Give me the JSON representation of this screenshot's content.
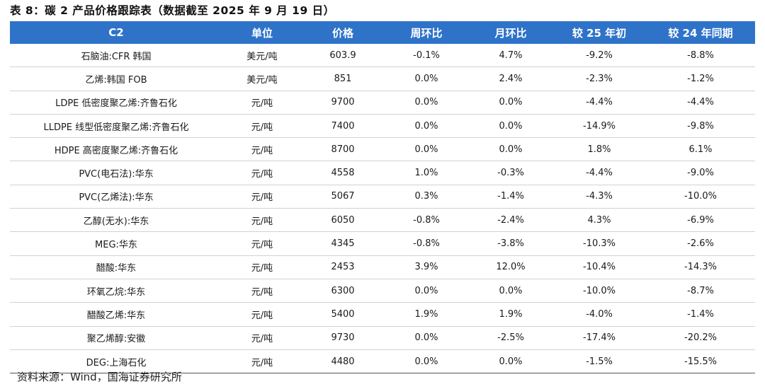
{
  "title": "表 8：碳 2 产品价格跟踪表（数据截至 2025 年 9 月 19 日）",
  "table": {
    "headers": [
      "C2",
      "单位",
      "价格",
      "周环比",
      "月环比",
      "较 25 年初",
      "较 24 年同期"
    ],
    "rows": [
      [
        "石脑油:CFR 韩国",
        "美元/吨",
        "603.9",
        "-0.1%",
        "4.7%",
        "-9.2%",
        "-8.8%"
      ],
      [
        "乙烯:韩国 FOB",
        "美元/吨",
        "851",
        "0.0%",
        "2.4%",
        "-2.3%",
        "-1.2%"
      ],
      [
        "LDPE 低密度聚乙烯:齐鲁石化",
        "元/吨",
        "9700",
        "0.0%",
        "0.0%",
        "-4.4%",
        "-4.4%"
      ],
      [
        "LLDPE 线型低密度聚乙烯:齐鲁石化",
        "元/吨",
        "7400",
        "0.0%",
        "0.0%",
        "-14.9%",
        "-9.8%"
      ],
      [
        "HDPE 高密度聚乙烯:齐鲁石化",
        "元/吨",
        "8700",
        "0.0%",
        "0.0%",
        "1.8%",
        "6.1%"
      ],
      [
        "PVC(电石法):华东",
        "元/吨",
        "4558",
        "1.0%",
        "-0.3%",
        "-4.4%",
        "-9.0%"
      ],
      [
        "PVC(乙烯法):华东",
        "元/吨",
        "5067",
        "0.3%",
        "-1.4%",
        "-4.3%",
        "-10.0%"
      ],
      [
        "乙醇(无水):华东",
        "元/吨",
        "6050",
        "-0.8%",
        "-2.4%",
        "4.3%",
        "-6.9%"
      ],
      [
        "MEG:华东",
        "元/吨",
        "4345",
        "-0.8%",
        "-3.8%",
        "-10.3%",
        "-2.6%"
      ],
      [
        "醋酸:华东",
        "元/吨",
        "2453",
        "3.9%",
        "12.0%",
        "-10.4%",
        "-14.3%"
      ],
      [
        "环氧乙烷:华东",
        "元/吨",
        "6300",
        "0.0%",
        "0.0%",
        "-10.0%",
        "-8.7%"
      ],
      [
        "醋酸乙烯:华东",
        "元/吨",
        "5400",
        "1.9%",
        "1.9%",
        "-4.0%",
        "-1.4%"
      ],
      [
        "聚乙烯醇:安徽",
        "元/吨",
        "9730",
        "0.0%",
        "-2.5%",
        "-17.4%",
        "-20.2%"
      ],
      [
        "DEG:上海石化",
        "元/吨",
        "4480",
        "0.0%",
        "0.0%",
        "-1.5%",
        "-15.5%"
      ]
    ]
  },
  "source": "资料来源：Wind，国海证券研究所",
  "colors": {
    "header_bg": "#2f73c9",
    "header_text": "#ffffff"
  }
}
